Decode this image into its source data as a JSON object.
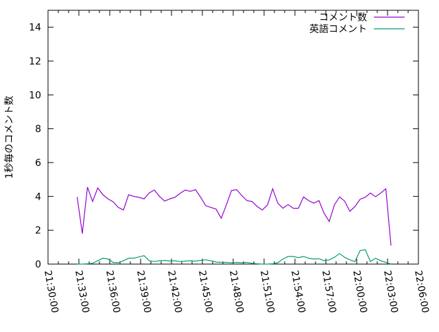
{
  "chart_data": {
    "type": "line",
    "title": "",
    "xlabel": "",
    "ylabel": "1秒毎のコメント数",
    "xlim": [
      "21:30:00",
      "22:06:00"
    ],
    "ylim": [
      0,
      15
    ],
    "grid": false,
    "legend_position": "top-right",
    "x_ticks": [
      "21:30:00",
      "21:33:00",
      "21:36:00",
      "21:39:00",
      "21:42:00",
      "21:45:00",
      "21:48:00",
      "21:51:00",
      "21:54:00",
      "21:57:00",
      "22:00:00",
      "22:03:00",
      "22:06:00"
    ],
    "y_ticks": [
      "0",
      "2",
      "4",
      "6",
      "8",
      "10",
      "12",
      "14"
    ],
    "x": [
      "21:32:50",
      "21:33:20",
      "21:33:50",
      "21:34:20",
      "21:34:50",
      "21:35:20",
      "21:35:50",
      "21:36:20",
      "21:36:50",
      "21:37:20",
      "21:37:50",
      "21:38:20",
      "21:38:50",
      "21:39:20",
      "21:39:50",
      "21:40:20",
      "21:40:50",
      "21:41:20",
      "21:41:50",
      "21:42:20",
      "21:42:50",
      "21:43:20",
      "21:43:50",
      "21:44:20",
      "21:44:50",
      "21:45:20",
      "21:45:50",
      "21:46:20",
      "21:46:50",
      "21:47:20",
      "21:47:50",
      "21:48:20",
      "21:48:50",
      "21:49:20",
      "21:49:50",
      "21:50:20",
      "21:50:50",
      "21:51:20",
      "21:51:50",
      "21:52:20",
      "21:52:50",
      "21:53:20",
      "21:53:50",
      "21:54:20",
      "21:54:50",
      "21:55:20",
      "21:55:50",
      "21:56:20",
      "21:56:50",
      "21:57:20",
      "21:57:50",
      "21:58:20",
      "21:58:50",
      "21:59:20",
      "21:59:50",
      "22:00:20",
      "22:00:50",
      "22:01:20",
      "22:01:50",
      "22:02:20",
      "22:02:50",
      "22:03:20"
    ],
    "series": [
      {
        "name": "コメント数",
        "color": "#9400d3",
        "values": [
          3.97,
          1.8,
          4.55,
          3.7,
          4.5,
          4.1,
          3.85,
          3.68,
          3.35,
          3.2,
          4.1,
          4.0,
          3.95,
          3.85,
          4.2,
          4.38,
          4.0,
          3.72,
          3.85,
          3.95,
          4.18,
          4.38,
          4.3,
          4.4,
          3.95,
          3.45,
          3.35,
          3.25,
          2.71,
          3.5,
          4.35,
          4.4,
          4.05,
          3.75,
          3.7,
          3.4,
          3.2,
          3.5,
          4.45,
          3.6,
          3.3,
          3.52,
          3.3,
          3.3,
          3.97,
          3.75,
          3.6,
          3.75,
          3.0,
          2.52,
          3.5,
          3.97,
          3.72,
          3.12,
          3.4,
          3.83,
          3.95,
          4.2,
          3.98,
          4.2,
          4.45,
          1.1
        ]
      },
      {
        "name": "英語コメント",
        "color": "#009e73",
        "values": [
          0,
          0,
          0.02,
          0.05,
          0.2,
          0.35,
          0.3,
          0.1,
          0.08,
          0.2,
          0.35,
          0.35,
          0.42,
          0.5,
          0.2,
          0.15,
          0.2,
          0.22,
          0.18,
          0.2,
          0.15,
          0.18,
          0.2,
          0.18,
          0.22,
          0.25,
          0.2,
          0.12,
          0.1,
          0.1,
          0.08,
          0.1,
          0.08,
          0.1,
          0.05,
          0.02,
          0,
          0,
          0.02,
          0.08,
          0.3,
          0.45,
          0.45,
          0.38,
          0.45,
          0.35,
          0.3,
          0.32,
          0.2,
          0.25,
          0.4,
          0.62,
          0.4,
          0.25,
          0.15,
          0.8,
          0.85,
          0.15,
          0.35,
          0.2,
          0.1,
          0
        ]
      }
    ]
  }
}
